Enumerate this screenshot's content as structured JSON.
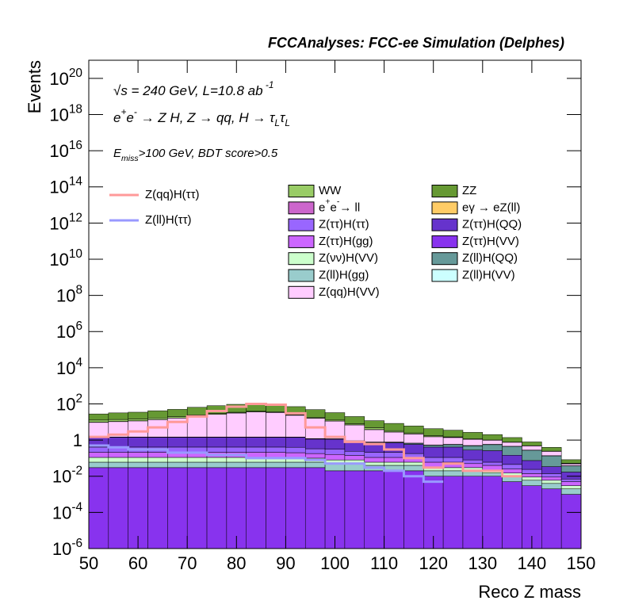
{
  "chart_data": {
    "type": "stacked_histogram",
    "title": "FCCAnalyses: FCC-ee Simulation (Delphes)",
    "y_label": "Events",
    "x_label": "Reco Z mass",
    "annotations": [
      "√s = 240 GeV, L=10.8 ab^{ -1}",
      "e^{+}e^{-} → Z H, Z  → qq, H  → τ_{L}τ_{L}",
      "E_{miss}>100 GeV, BDT score>0.5"
    ],
    "log_y": true,
    "bins": [
      50,
      54,
      58,
      62,
      66,
      70,
      74,
      78,
      82,
      86,
      90,
      94,
      98,
      102,
      106,
      110,
      114,
      118,
      122,
      126,
      130,
      134,
      138,
      142,
      146,
      150
    ],
    "xlim": [
      50,
      150
    ],
    "xticks": [
      50,
      60,
      70,
      80,
      90,
      100,
      110,
      120,
      130,
      140,
      150
    ],
    "ylim": [
      1e-06,
      1e+21
    ],
    "yticks": [
      {
        "value": 1e-06,
        "label": "10^{-6}"
      },
      {
        "value": 0.0001,
        "label": "10^{-4}"
      },
      {
        "value": 0.01,
        "label": "10^{-2}"
      },
      1,
      {
        "value": 100,
        "label": "10^{2}"
      },
      {
        "value": 10000.0,
        "label": "10^{4}"
      },
      {
        "value": 1000000.0,
        "label": "10^{6}"
      },
      {
        "value": 100000000.0,
        "label": "10^{8}"
      },
      {
        "value": 10000000000.0,
        "label": "10^{10}"
      },
      {
        "value": 1000000000000.0,
        "label": "10^{12}"
      },
      {
        "value": 100000000000000.0,
        "label": "10^{14}"
      },
      {
        "value": 1e+16,
        "label": "10^{16}"
      },
      {
        "value": 1e+18,
        "label": "10^{18}"
      },
      {
        "value": 1e+20,
        "label": "10^{20}"
      }
    ],
    "series": [
      {
        "name": "WW",
        "color": "#99cc66",
        "values": [
          3,
          3,
          3,
          3,
          3,
          3,
          3,
          3,
          3,
          3,
          2,
          2,
          1.5,
          1,
          1,
          0.5,
          0.3,
          0.2,
          0.1,
          0.05,
          0.02,
          0.01,
          0.005,
          0.002,
          0.001
        ]
      },
      {
        "name": "ZZ",
        "color": "#669933",
        "values": [
          15,
          18,
          20,
          25,
          30,
          40,
          50,
          60,
          70,
          65,
          45,
          30,
          20,
          12,
          7,
          5,
          3.5,
          2.5,
          2,
          1.5,
          1,
          0.6,
          0.3,
          0.15,
          0.03
        ]
      },
      {
        "name": "e^{+}e^{-}→ ll",
        "color": "#cc66cc",
        "values": [
          0.3,
          0.3,
          0.2,
          0.2,
          0.2,
          0.2,
          0.1,
          0.1,
          0.1,
          0.1,
          0.1,
          0.1,
          0.1,
          0.05,
          0.05,
          0.05,
          0.02,
          0.02,
          0.02,
          0.01,
          0.01,
          0.01,
          0.005,
          0.005,
          0.002
        ]
      },
      {
        "name": "eγ  → eZ(ll)",
        "color": "#ffcc66",
        "values": [
          0.005,
          0.003,
          0.005,
          0.003,
          0.003,
          0.003,
          0.003,
          0.003,
          0.003,
          0.003,
          0.003,
          0.003,
          0.003,
          0.003,
          0.003,
          0.003,
          0.002,
          0.002,
          0.002,
          0.002,
          0.002,
          0.002,
          0.001,
          0.001,
          0.001
        ]
      },
      {
        "name": "Z(ττ)H(ττ)",
        "color": "#9966ff",
        "values": [
          0.2,
          0.2,
          0.2,
          0.2,
          0.2,
          0.2,
          0.2,
          0.2,
          0.2,
          0.2,
          0.2,
          0.15,
          0.15,
          0.1,
          0.1,
          0.1,
          0.08,
          0.05,
          0.05,
          0.03,
          0.02,
          0.02,
          0.01,
          0.005,
          0.002
        ]
      },
      {
        "name": "Z(ττ)H(QQ)",
        "color": "#6633cc",
        "values": [
          1,
          1,
          1,
          1,
          1,
          1,
          1,
          1,
          1,
          1,
          1,
          0.8,
          0.8,
          0.6,
          0.5,
          0.5,
          0.4,
          0.3,
          0.3,
          0.2,
          0.2,
          0.1,
          0.05,
          0.02,
          0.01
        ]
      },
      {
        "name": "Z(ττ)H(gg)",
        "color": "#cc66ff",
        "values": [
          0.1,
          0.1,
          0.1,
          0.1,
          0.1,
          0.1,
          0.1,
          0.1,
          0.1,
          0.1,
          0.1,
          0.08,
          0.08,
          0.06,
          0.05,
          0.05,
          0.04,
          0.03,
          0.03,
          0.02,
          0.02,
          0.01,
          0.005,
          0.003,
          0.002
        ]
      },
      {
        "name": "Z(ττ)H(VV)",
        "color": "#8833ee",
        "values": [
          0.03,
          0.03,
          0.03,
          0.03,
          0.03,
          0.03,
          0.03,
          0.03,
          0.03,
          0.03,
          0.03,
          0.03,
          0.02,
          0.02,
          0.02,
          0.02,
          0.02,
          0.01,
          0.01,
          0.01,
          0.01,
          0.005,
          0.003,
          0.002,
          0.001
        ]
      },
      {
        "name": "Z(νν)H(VV)",
        "color": "#ccffcc",
        "values": [
          0.05,
          0.05,
          0.05,
          0.05,
          0.05,
          0.05,
          0.05,
          0.05,
          0.05,
          0.05,
          0.04,
          0.04,
          0.03,
          0.03,
          0.02,
          0.02,
          0.02,
          0.01,
          0.01,
          0.01,
          0.005,
          0.005,
          0.003,
          0.002,
          0.001
        ]
      },
      {
        "name": "Z(ll)H(QQ)",
        "color": "#669999",
        "values": [
          0.05,
          0.05,
          0.05,
          0.05,
          0.05,
          0.05,
          0.05,
          0.05,
          0.05,
          0.05,
          0.05,
          0.05,
          0.05,
          0.05,
          0.05,
          0.05,
          0.08,
          0.1,
          0.15,
          0.2,
          0.3,
          0.3,
          0.2,
          0.1,
          0.02
        ]
      },
      {
        "name": "Z(ll)H(gg)",
        "color": "#99cccc",
        "values": [
          0.03,
          0.03,
          0.03,
          0.03,
          0.03,
          0.03,
          0.03,
          0.03,
          0.03,
          0.03,
          0.03,
          0.03,
          0.03,
          0.03,
          0.02,
          0.02,
          0.02,
          0.01,
          0.01,
          0.01,
          0.005,
          0.005,
          0.003,
          0.002,
          0.001
        ]
      },
      {
        "name": "Z(ll)H(VV)",
        "color": "#ccffff",
        "values": [
          0.02,
          0.02,
          0.02,
          0.02,
          0.02,
          0.02,
          0.02,
          0.02,
          0.02,
          0.02,
          0.02,
          0.02,
          0.02,
          0.02,
          0.02,
          0.02,
          0.02,
          0.02,
          0.02,
          0.02,
          0.02,
          0.01,
          0.005,
          0.003,
          0.001
        ]
      },
      {
        "name": "Z(qq)H(VV)",
        "color": "#ffccff",
        "values": [
          8,
          9,
          10,
          12,
          15,
          20,
          25,
          30,
          35,
          32,
          22,
          15,
          10,
          6,
          3,
          2,
          1.5,
          1,
          0.8,
          0.6,
          0.4,
          0.3,
          0.2,
          0.1,
          0.01
        ]
      }
    ],
    "lines": [
      {
        "name": "Z(qq)H(ττ)",
        "color": "#ff9999",
        "values": [
          1.5,
          2,
          3,
          5,
          10,
          20,
          40,
          70,
          100,
          90,
          30,
          5,
          1.5,
          0.8,
          0.6,
          0.3,
          0.1,
          0.03,
          0.05,
          0.02,
          0.02,
          0.01,
          null,
          null,
          null
        ]
      },
      {
        "name": "Z(ll)H(ττ)",
        "color": "#9999ff",
        "values": [
          0.5,
          0.4,
          0.3,
          0.3,
          0.2,
          0.2,
          0.15,
          0.15,
          0.1,
          0.1,
          0.1,
          0.08,
          0.05,
          0.05,
          0.03,
          0.02,
          0.01,
          0.005,
          null,
          null,
          null,
          null,
          null,
          null,
          null
        ]
      }
    ]
  }
}
